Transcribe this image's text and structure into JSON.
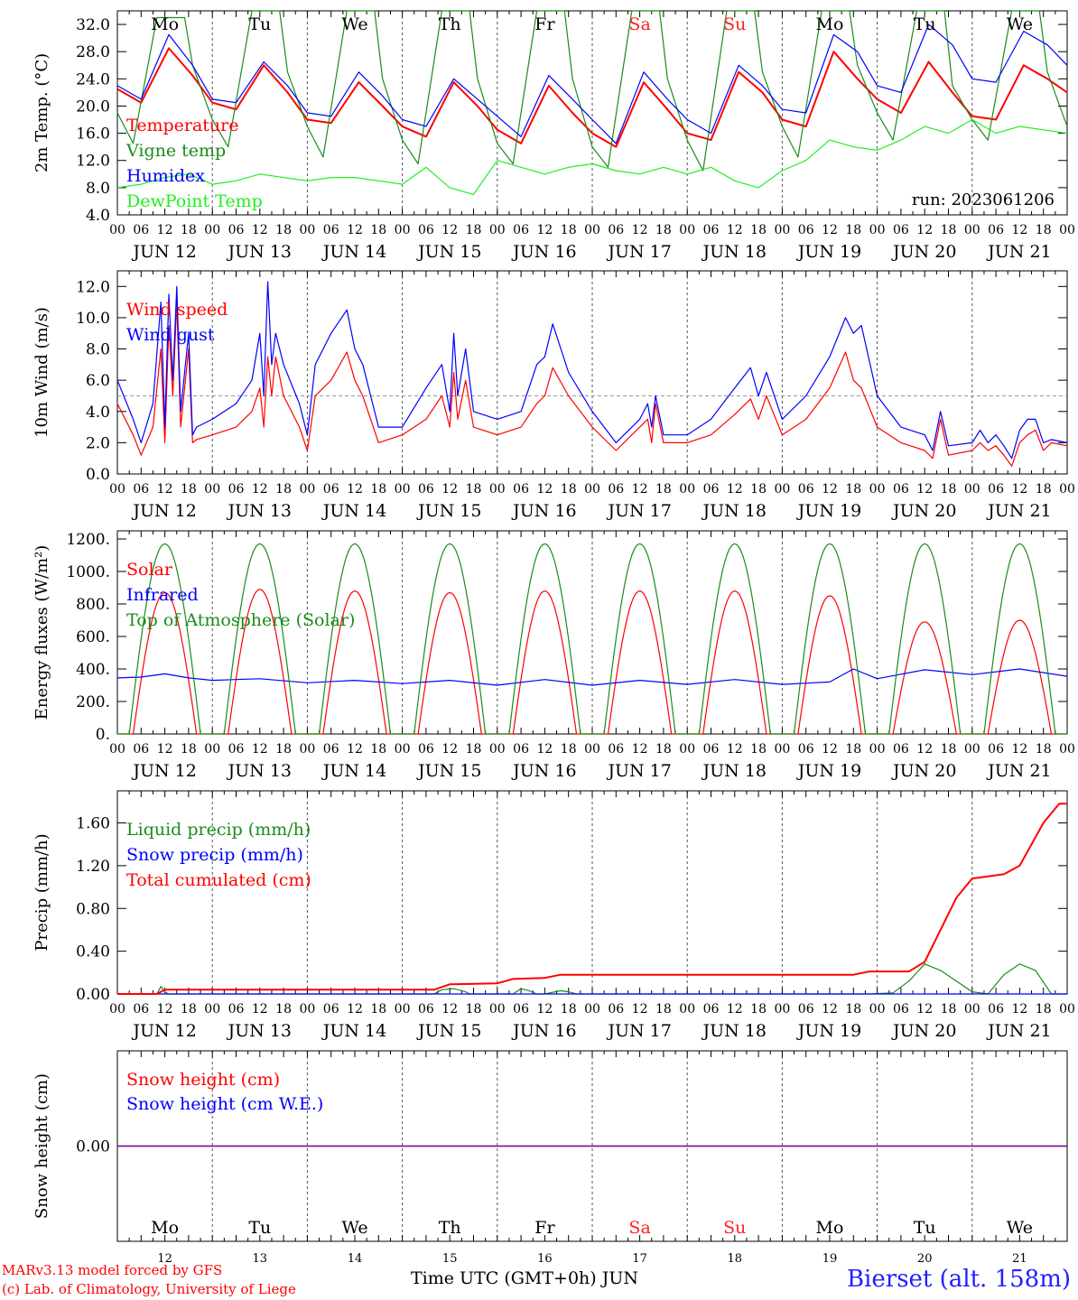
{
  "header": {
    "run_label": "run: 2023061206"
  },
  "days": {
    "weekdays": [
      "Mo",
      "Tu",
      "We",
      "Th",
      "Fr",
      "Sa",
      "Su",
      "Mo",
      "Tu",
      "We"
    ],
    "weekday_colors": [
      "#000000",
      "#000000",
      "#000000",
      "#000000",
      "#000000",
      "#ff2020",
      "#ff2020",
      "#000000",
      "#000000",
      "#000000"
    ],
    "date_labels": [
      "JUN 12",
      "JUN 13",
      "JUN 14",
      "JUN 15",
      "JUN 16",
      "JUN 17",
      "JUN 18",
      "JUN 19",
      "JUN 20",
      "JUN 21"
    ],
    "day_numbers": [
      "12",
      "13",
      "14",
      "15",
      "16",
      "17",
      "18",
      "19",
      "20",
      "21"
    ],
    "hour_ticks": [
      "00",
      "06",
      "12",
      "18"
    ],
    "final_hour": "00"
  },
  "footer": {
    "credit_line1": "MARv3.13 model forced by GFS",
    "credit_line2": "(c) Lab. of Climatology, University of Liege",
    "xaxis_title": "Time UTC (GMT+0h) JUN",
    "station": "Bierset (alt. 158m)"
  },
  "chart_data": [
    {
      "type": "line",
      "id": "temperature",
      "ylabel": "2m Temp. (°C)",
      "ylim": [
        4.0,
        34.0
      ],
      "yticks": [
        "4.0",
        "8.0",
        "12.0",
        "16.0",
        "20.0",
        "24.0",
        "28.0",
        "32.0"
      ],
      "grid": "vertical dashed day separators",
      "x_unit": "hours since JUN 12 00 UTC",
      "legend_placement": "left",
      "series": [
        {
          "name": "Temperature",
          "color": "#ff0000",
          "x": [
            0,
            6,
            13,
            19,
            24,
            30,
            37,
            43,
            48,
            54,
            61,
            67,
            72,
            78,
            85,
            91,
            96,
            102,
            109,
            115,
            120,
            126,
            133,
            139,
            144,
            150,
            157,
            163,
            168,
            174,
            181,
            187,
            192,
            198,
            205,
            211,
            216,
            222,
            229,
            235,
            240
          ],
          "y": [
            22.5,
            20.5,
            28.5,
            24.5,
            20.5,
            19.5,
            26,
            22,
            18,
            17.5,
            23.5,
            20,
            17,
            15.5,
            23.5,
            20,
            16.5,
            14.5,
            23,
            19,
            16,
            14,
            23.5,
            19.5,
            16,
            15,
            25,
            22,
            18,
            17,
            28,
            24,
            21,
            19,
            26.5,
            22,
            18.5,
            18,
            26,
            24,
            22
          ]
        },
        {
          "name": "Vigne temp",
          "color": "#1a8c1a",
          "x": [
            0,
            4,
            10,
            17,
            19,
            24,
            28,
            34,
            41,
            43,
            48,
            52,
            58,
            65,
            67,
            72,
            76,
            82,
            89,
            91,
            96,
            100,
            106,
            113,
            115,
            120,
            124,
            130,
            137,
            139,
            144,
            148,
            154,
            161,
            163,
            168,
            172,
            178,
            185,
            187,
            192,
            196,
            202,
            209,
            211,
            216,
            220,
            226,
            233,
            235,
            240
          ],
          "y": [
            19,
            14.5,
            33,
            33,
            26,
            18,
            14,
            34,
            34,
            25,
            17,
            12.5,
            34,
            34,
            24,
            15,
            11.5,
            34,
            34,
            24,
            14.5,
            11.5,
            34,
            34,
            24,
            14,
            11,
            34,
            34,
            24,
            15,
            10.5,
            34,
            34,
            25,
            17,
            12.5,
            34,
            34,
            26,
            19,
            15,
            34,
            34,
            23,
            18,
            15,
            34,
            34,
            25,
            17
          ]
        },
        {
          "name": "Humidex",
          "color": "#0000ff",
          "x": [
            0,
            6,
            13,
            19,
            24,
            30,
            37,
            43,
            48,
            54,
            61,
            67,
            72,
            78,
            85,
            91,
            96,
            102,
            109,
            115,
            120,
            126,
            133,
            139,
            144,
            150,
            157,
            163,
            168,
            174,
            181,
            187,
            192,
            198,
            205,
            211,
            216,
            222,
            229,
            235,
            240
          ],
          "y": [
            23,
            21,
            30.5,
            26,
            21,
            20.5,
            26.5,
            23,
            19,
            18.5,
            25,
            21.5,
            18,
            17,
            24,
            21,
            18.5,
            15.5,
            24.5,
            21,
            18,
            14.5,
            25,
            21,
            18,
            16,
            26,
            23,
            19.5,
            19,
            30.5,
            28,
            23,
            22,
            32,
            29,
            24,
            23.5,
            31,
            29,
            26
          ]
        },
        {
          "name": "DewPoint Temp",
          "color": "#22ee22",
          "x": [
            0,
            6,
            12,
            18,
            24,
            30,
            36,
            42,
            48,
            54,
            60,
            66,
            72,
            78,
            84,
            90,
            96,
            102,
            108,
            114,
            120,
            126,
            132,
            138,
            144,
            150,
            156,
            162,
            168,
            174,
            180,
            186,
            192,
            198,
            204,
            210,
            216,
            222,
            228,
            234,
            240
          ],
          "y": [
            8,
            8.5,
            9.5,
            10,
            8.5,
            9,
            10,
            9.5,
            9,
            9.5,
            9.5,
            9,
            8.5,
            11,
            8,
            7,
            12,
            11,
            10,
            11,
            11.5,
            10.5,
            10,
            11,
            10,
            11,
            9,
            8,
            10.5,
            12,
            15,
            14,
            13.5,
            15,
            17,
            16,
            18,
            16,
            17,
            16.5,
            16
          ]
        }
      ]
    },
    {
      "type": "line",
      "id": "wind",
      "ylabel": "10m Wind (m/s)",
      "ylim": [
        0.0,
        13.0
      ],
      "yticks": [
        "0.0",
        "2.0",
        "4.0",
        "6.0",
        "8.0",
        "10.0",
        "12.0"
      ],
      "reference_line": 5.0,
      "x_unit": "hours since JUN 12 00 UTC",
      "legend_placement": "left",
      "series": [
        {
          "name": "Wind speed",
          "color": "#ff0000",
          "x": [
            0,
            4,
            6,
            9,
            11,
            12,
            13,
            14,
            15,
            16,
            18,
            19,
            20,
            24,
            30,
            34,
            36,
            37,
            38,
            39,
            40,
            42,
            46,
            48,
            50,
            54,
            58,
            60,
            62,
            66,
            72,
            78,
            82,
            84,
            85,
            86,
            88,
            90,
            96,
            102,
            106,
            108,
            110,
            114,
            120,
            126,
            132,
            134,
            135,
            136,
            138,
            144,
            150,
            156,
            160,
            162,
            164,
            168,
            174,
            180,
            184,
            186,
            188,
            192,
            198,
            204,
            206,
            208,
            210,
            216,
            218,
            220,
            222,
            224,
            226,
            228,
            230,
            232,
            234,
            236,
            240
          ],
          "y": [
            4.5,
            2.5,
            1.2,
            3,
            8,
            2,
            9.5,
            5,
            11,
            3,
            8,
            2,
            2.2,
            2.5,
            3,
            4,
            5.5,
            3,
            7.5,
            5,
            7.5,
            5,
            3,
            1.5,
            5,
            6,
            7.8,
            6,
            5,
            2,
            2.5,
            3.5,
            5,
            3,
            6.5,
            3.5,
            6,
            3,
            2.5,
            3,
            4.5,
            5,
            6.8,
            5,
            3,
            1.5,
            3,
            3.5,
            2,
            4.5,
            2,
            2,
            2.5,
            3.8,
            4.8,
            3.5,
            5,
            2.5,
            3.5,
            5.5,
            7.8,
            6,
            5.5,
            3,
            2,
            1.5,
            1,
            3.5,
            1.2,
            1.5,
            2,
            1.5,
            1.8,
            1.2,
            0.5,
            2,
            2.5,
            2.8,
            1.5,
            2,
            1.8
          ]
        },
        {
          "name": "Wind gust",
          "color": "#0000ff",
          "x": [
            0,
            4,
            6,
            9,
            11,
            12,
            13,
            14,
            15,
            16,
            18,
            19,
            20,
            24,
            30,
            34,
            36,
            37,
            38,
            39,
            40,
            42,
            46,
            48,
            50,
            54,
            58,
            60,
            62,
            66,
            72,
            78,
            82,
            84,
            85,
            86,
            88,
            90,
            96,
            102,
            106,
            108,
            110,
            114,
            120,
            126,
            132,
            134,
            135,
            136,
            138,
            144,
            150,
            156,
            160,
            162,
            164,
            168,
            174,
            180,
            184,
            186,
            188,
            192,
            198,
            204,
            206,
            208,
            210,
            216,
            218,
            220,
            222,
            224,
            226,
            228,
            230,
            232,
            234,
            236,
            240
          ],
          "y": [
            6,
            3.5,
            2,
            4.5,
            11,
            3,
            11.5,
            6,
            12,
            4,
            9,
            2.5,
            3,
            3.5,
            4.5,
            6,
            9,
            5,
            12.3,
            7,
            9,
            7,
            4.5,
            2.5,
            7,
            9,
            10.5,
            8,
            7,
            3,
            3,
            5.5,
            7,
            4,
            9,
            5,
            8,
            4,
            3.5,
            4,
            7,
            7.5,
            9.6,
            6.5,
            4,
            2,
            3.5,
            4.5,
            3,
            5,
            2.5,
            2.5,
            3.5,
            5.5,
            6.8,
            5,
            6.5,
            3.5,
            5,
            7.5,
            10,
            9,
            9.5,
            5,
            3,
            2.5,
            1.5,
            4,
            1.8,
            2,
            2.8,
            2,
            2.5,
            1.8,
            1,
            2.8,
            3.5,
            3.5,
            2,
            2.2,
            2
          ]
        }
      ]
    },
    {
      "type": "line",
      "id": "energy",
      "ylabel": "Energy fluxes (W/m²)",
      "ylim": [
        0,
        1250
      ],
      "yticks": [
        "0.",
        "200.",
        "400.",
        "600.",
        "800.",
        "1000.",
        "1200."
      ],
      "x_unit": "hours since JUN 12 00 UTC",
      "legend_placement": "left",
      "series": [
        {
          "name": "Solar",
          "color": "#ff0000",
          "shape": "daily bell",
          "day_start_hour": 4,
          "day_end_hour": 20,
          "daily_peaks": [
            870,
            890,
            880,
            870,
            880,
            880,
            880,
            850,
            690,
            700
          ]
        },
        {
          "name": "Infrared",
          "color": "#0000ff",
          "x": [
            0,
            6,
            12,
            18,
            24,
            36,
            48,
            60,
            72,
            84,
            96,
            108,
            120,
            132,
            144,
            156,
            168,
            180,
            186,
            192,
            204,
            216,
            228,
            240
          ],
          "y": [
            345,
            350,
            370,
            345,
            330,
            340,
            315,
            330,
            310,
            330,
            300,
            335,
            300,
            330,
            305,
            335,
            305,
            320,
            400,
            340,
            395,
            365,
            400,
            355
          ]
        },
        {
          "name": "Top of Atmosphere (Solar)",
          "color": "#1a8c1a",
          "shape": "daily bell",
          "day_start_hour": 3,
          "day_end_hour": 21,
          "daily_peaks": [
            1170,
            1170,
            1170,
            1170,
            1170,
            1170,
            1170,
            1170,
            1170,
            1170
          ]
        }
      ]
    },
    {
      "type": "line",
      "id": "precip",
      "ylabel": "Precip (mm/h)",
      "ylim": [
        0.0,
        1.9
      ],
      "yticks": [
        "0.00",
        "0.40",
        "0.80",
        "1.20",
        "1.60"
      ],
      "x_unit": "hours since JUN 12 00 UTC",
      "legend_placement": "left",
      "series": [
        {
          "name": "Liquid precip (mm/h)",
          "color": "#1a8c1a",
          "x": [
            0,
            10,
            11,
            12,
            13,
            80,
            82,
            85,
            88,
            89,
            100,
            102,
            104,
            106,
            108,
            112,
            114,
            116,
            118,
            190,
            196,
            200,
            204,
            208,
            212,
            216,
            220,
            224,
            228,
            232,
            236,
            240
          ],
          "y": [
            0,
            0,
            0.07,
            0.02,
            0,
            0,
            0.04,
            0.05,
            0.02,
            0,
            0,
            0.05,
            0.03,
            0,
            0,
            0.03,
            0.02,
            0,
            0,
            0,
            0.01,
            0.12,
            0.28,
            0.22,
            0.12,
            0.02,
            0,
            0.18,
            0.28,
            0.22,
            0,
            0
          ]
        },
        {
          "name": "Snow precip (mm/h)",
          "color": "#0000ff",
          "x": [
            0,
            240
          ],
          "y": [
            0,
            0
          ]
        },
        {
          "name": "Total cumulated (cm)",
          "color": "#ff0000",
          "x": [
            0,
            10,
            12,
            80,
            84,
            96,
            100,
            108,
            112,
            186,
            190,
            200,
            204,
            212,
            216,
            224,
            228,
            234,
            238,
            240
          ],
          "y": [
            0,
            0,
            0.04,
            0.04,
            0.09,
            0.1,
            0.14,
            0.15,
            0.18,
            0.18,
            0.21,
            0.21,
            0.3,
            0.9,
            1.08,
            1.12,
            1.2,
            1.6,
            1.78,
            1.78
          ]
        }
      ]
    },
    {
      "type": "line",
      "id": "snow",
      "ylabel": "Snow height (cm)",
      "ylim": [
        -1.0,
        1.0
      ],
      "yticks": [
        "0.00"
      ],
      "x_unit": "hours since JUN 12 00 UTC",
      "legend_placement": "left",
      "series": [
        {
          "name": "Snow height (cm)",
          "color": "#ff0000",
          "x": [
            0,
            240
          ],
          "y": [
            0,
            0
          ]
        },
        {
          "name": "Snow height (cm W.E.)",
          "color": "#0000ff",
          "x": [
            0,
            240
          ],
          "y": [
            0,
            0
          ]
        }
      ]
    }
  ]
}
